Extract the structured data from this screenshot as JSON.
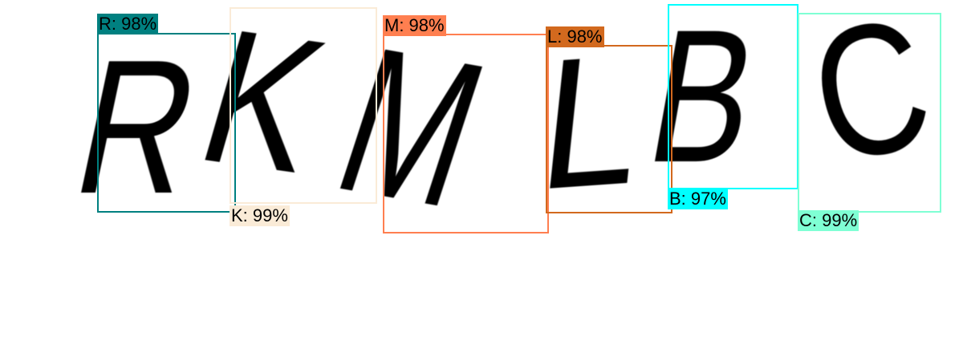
{
  "detections": [
    {
      "char": "R",
      "label": "R: 98%",
      "color": "#008080"
    },
    {
      "char": "K",
      "label": "K: 99%",
      "color": "#FAEBD7"
    },
    {
      "char": "M",
      "label": "M: 98%",
      "color": "#FF7F50"
    },
    {
      "char": "L",
      "label": "L: 98%",
      "color": "#D2691E"
    },
    {
      "char": "B",
      "label": "B: 97%",
      "color": "#00FFFF"
    },
    {
      "char": "C",
      "label": "C: 99%",
      "color": "#7FFFD4"
    }
  ]
}
